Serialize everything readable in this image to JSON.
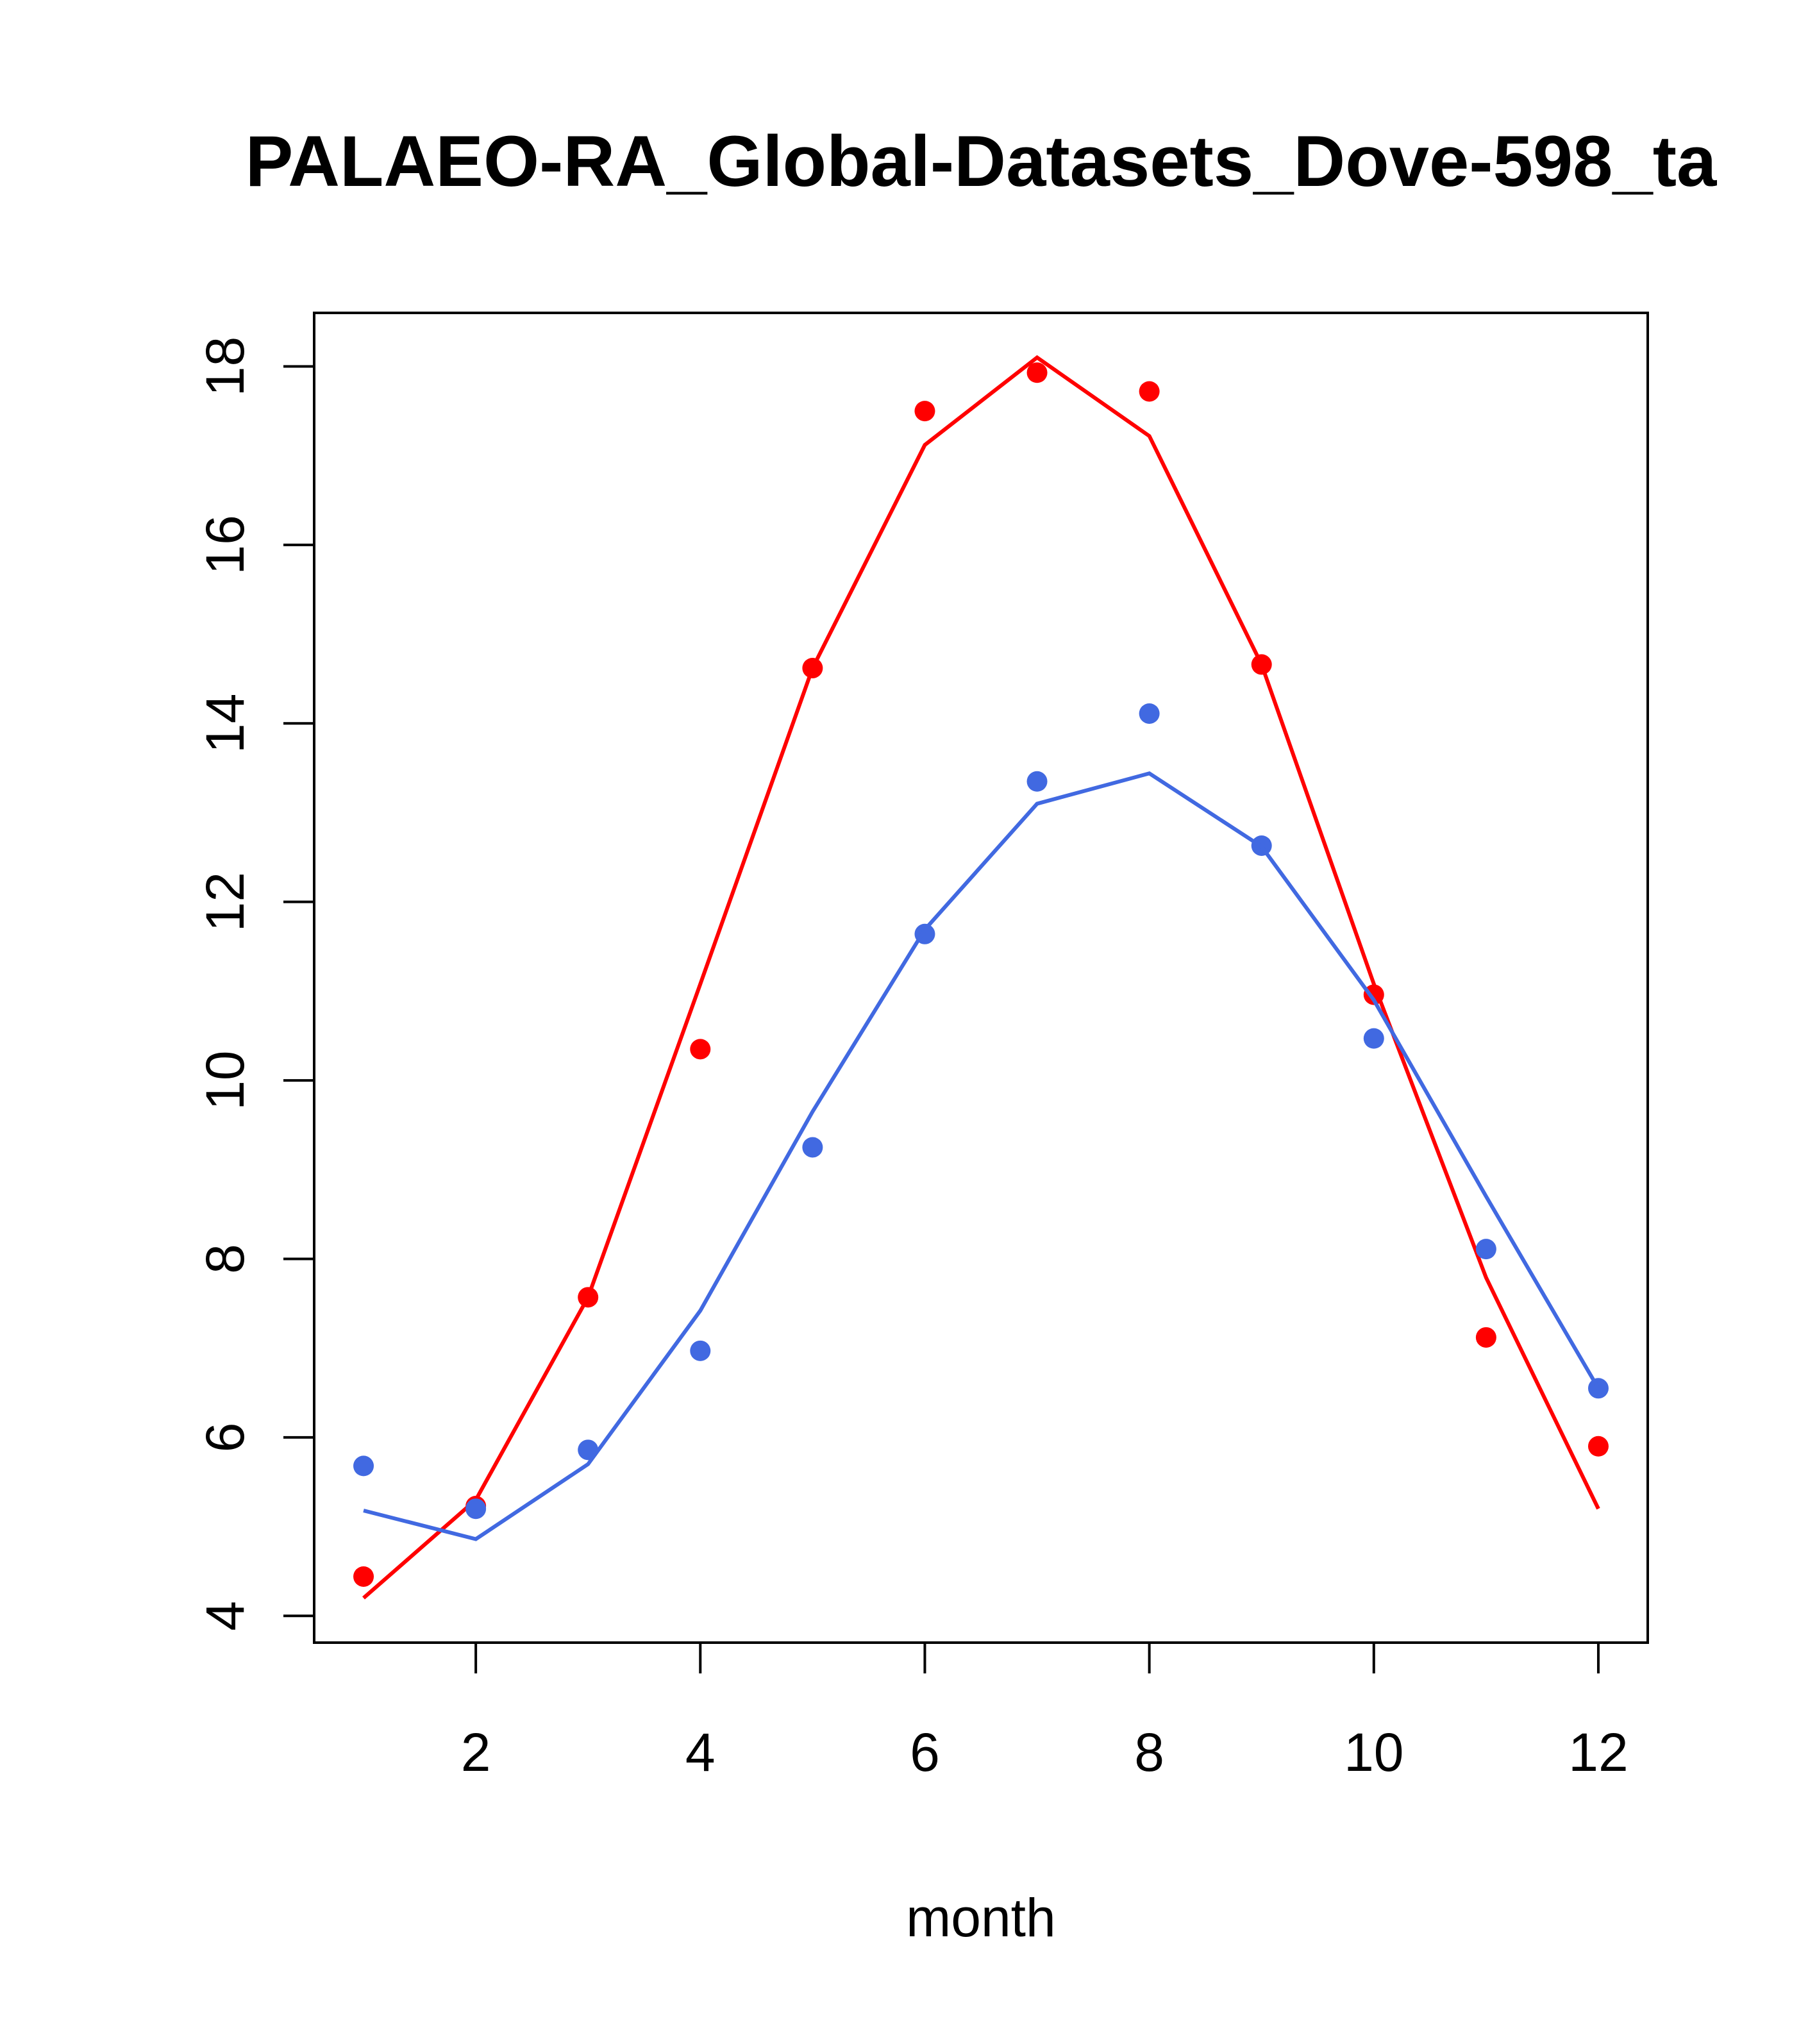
{
  "chart_data": {
    "type": "line",
    "title": "PALAEO-RA_Global-Datasets_Dove-598_ta",
    "xlabel": "month",
    "ylabel": "",
    "xlim": [
      0.56,
      12.44
    ],
    "ylim": [
      3.7,
      18.6
    ],
    "xticks": [
      2,
      4,
      6,
      8,
      10,
      12
    ],
    "yticks": [
      4,
      6,
      8,
      10,
      12,
      14,
      16,
      18
    ],
    "grid": false,
    "x": [
      1,
      2,
      3,
      4,
      5,
      6,
      7,
      8,
      9,
      10,
      11,
      12
    ],
    "series": [
      {
        "name": "red points",
        "kind": "points",
        "color": "#ff0000",
        "values": [
          4.44,
          5.23,
          7.57,
          10.35,
          14.62,
          17.5,
          17.93,
          17.72,
          14.66,
          10.96,
          7.12,
          5.9
        ]
      },
      {
        "name": "red line",
        "kind": "line",
        "color": "#ff0000",
        "values": [
          4.2,
          5.3,
          7.57,
          11.08,
          14.62,
          17.12,
          18.1,
          17.22,
          14.66,
          11.08,
          7.79,
          5.2
        ]
      },
      {
        "name": "blue points",
        "kind": "points",
        "color": "#4169e1",
        "values": [
          5.68,
          5.2,
          5.86,
          6.97,
          9.25,
          11.64,
          13.35,
          14.11,
          12.63,
          10.47,
          8.11,
          6.55
        ]
      },
      {
        "name": "blue line",
        "kind": "line",
        "color": "#4169e1",
        "values": [
          5.18,
          4.86,
          5.7,
          7.42,
          9.65,
          11.69,
          13.1,
          13.44,
          12.62,
          10.9,
          8.7,
          6.55
        ]
      }
    ]
  }
}
